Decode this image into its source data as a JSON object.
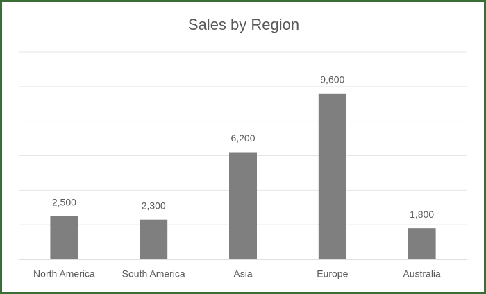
{
  "chart_data": {
    "type": "bar",
    "title": "Sales by Region",
    "categories": [
      "North America",
      "South America",
      "Asia",
      "Europe",
      "Australia"
    ],
    "values": [
      2500,
      2300,
      6200,
      9600,
      1800
    ],
    "value_labels": [
      "2,500",
      "2,300",
      "6,200",
      "9,600",
      "1,800"
    ],
    "color": "#7f7f7f",
    "ylim": [
      0,
      12000
    ],
    "yticks": [
      0,
      2000,
      4000,
      6000,
      8000,
      10000,
      12000
    ],
    "grid": true
  }
}
